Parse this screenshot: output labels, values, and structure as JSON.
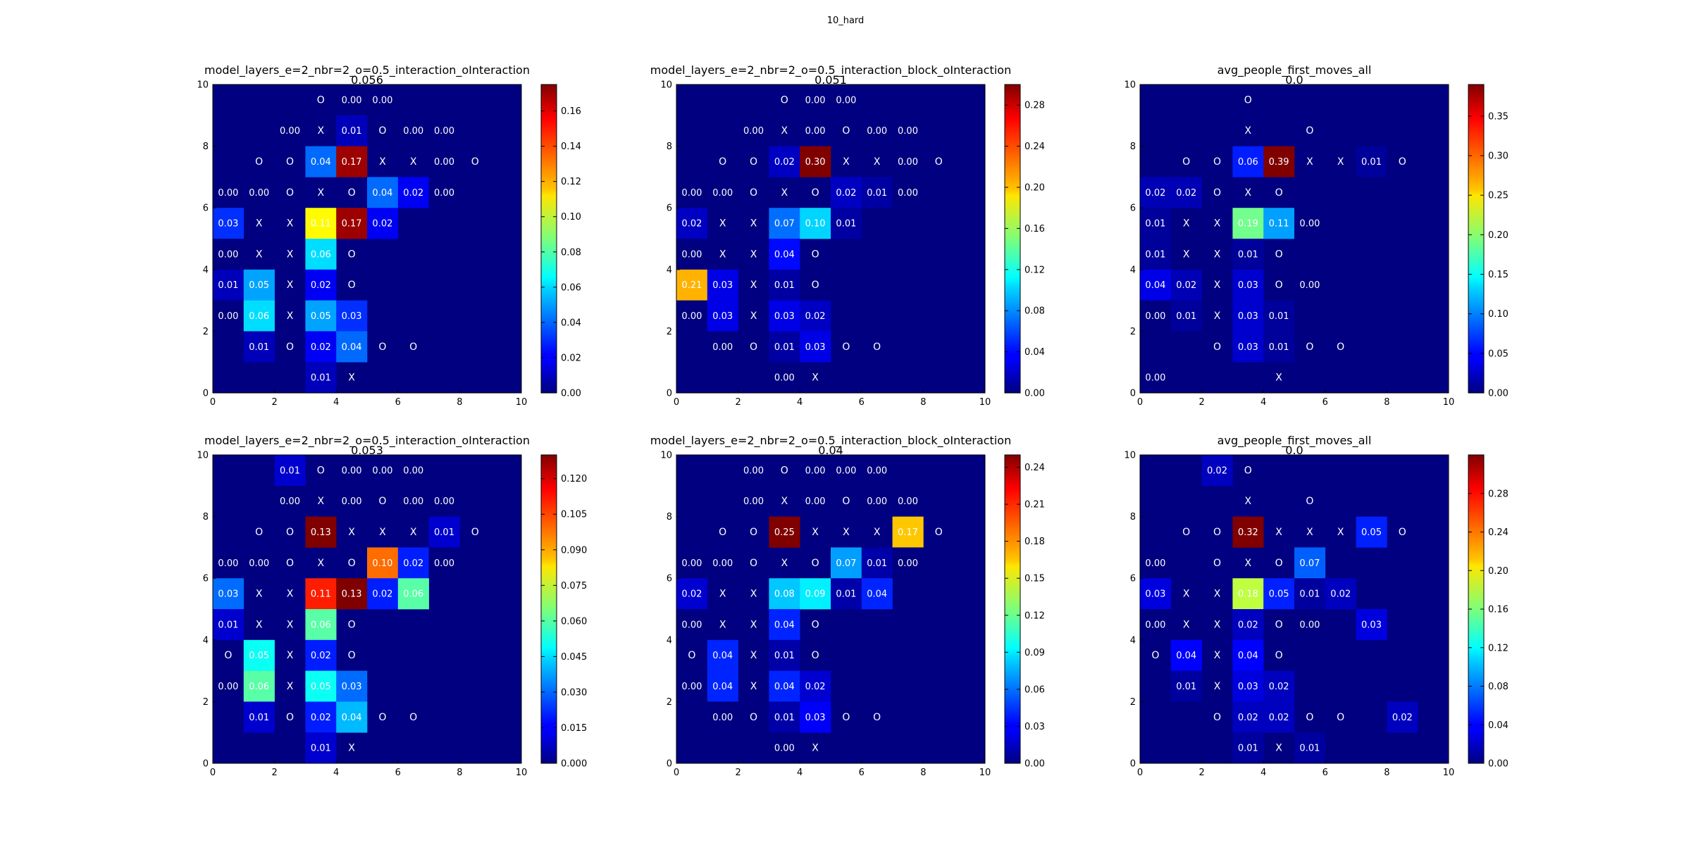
{
  "figure_title": "10_hard",
  "colors": {
    "frame": "#000000",
    "cell_text": "#ffffff"
  },
  "chart_data": [
    {
      "type": "heatmap",
      "title": "model_layers_e=2_nbr=2_o=0.5_interaction_oInteraction",
      "subtitle": "0.056",
      "xlim": [
        0,
        10
      ],
      "ylim": [
        0,
        10
      ],
      "x_ticks": [
        "0",
        "2",
        "4",
        "6",
        "8",
        "10"
      ],
      "y_ticks": [
        "0",
        "2",
        "4",
        "6",
        "8",
        "10"
      ],
      "colorbar": {
        "min": 0,
        "max": 0.175,
        "ticks": [
          "0.00",
          "0.02",
          "0.04",
          "0.06",
          "0.08",
          "0.10",
          "0.12",
          "0.14",
          "0.16"
        ]
      },
      "rows": [
        [
          "",
          "",
          "",
          "O",
          "0.00",
          "0.00",
          "",
          "",
          "",
          ""
        ],
        [
          "",
          "",
          "0.00",
          "X",
          "0.01",
          "O",
          "0.00",
          "0.00",
          "",
          ""
        ],
        [
          "",
          "O",
          "O",
          "0.04",
          "0.17",
          "X",
          "X",
          "0.00",
          "O",
          ""
        ],
        [
          "0.00",
          "0.00",
          "O",
          "X",
          "O",
          "0.04",
          "0.02",
          "0.00",
          "",
          ""
        ],
        [
          "0.03",
          "X",
          "X",
          "0.11",
          "0.17",
          "0.02",
          "",
          "",
          "",
          ""
        ],
        [
          "0.00",
          "X",
          "X",
          "0.06",
          "O",
          "",
          "",
          "",
          "",
          ""
        ],
        [
          "0.01",
          "0.05",
          "X",
          "0.02",
          "O",
          "",
          "",
          "",
          "",
          ""
        ],
        [
          "0.00",
          "0.06",
          "X",
          "0.05",
          "0.03",
          "",
          "",
          "",
          "",
          ""
        ],
        [
          "",
          "0.01",
          "O",
          "0.02",
          "0.04",
          "O",
          "O",
          "",
          "",
          ""
        ],
        [
          "",
          "",
          "",
          "0.01",
          "X",
          "",
          "",
          "",
          "",
          ""
        ]
      ]
    },
    {
      "type": "heatmap",
      "title": "model_layers_e=2_nbr=2_o=0.5_interaction_block_oInteraction",
      "subtitle": "0.051",
      "xlim": [
        0,
        10
      ],
      "ylim": [
        0,
        10
      ],
      "x_ticks": [
        "0",
        "2",
        "4",
        "6",
        "8",
        "10"
      ],
      "y_ticks": [
        "0",
        "2",
        "4",
        "6",
        "8",
        "10"
      ],
      "colorbar": {
        "min": 0,
        "max": 0.3,
        "ticks": [
          "0.00",
          "0.04",
          "0.08",
          "0.12",
          "0.16",
          "0.20",
          "0.24",
          "0.28"
        ]
      },
      "rows": [
        [
          "",
          "",
          "",
          "O",
          "0.00",
          "0.00",
          "",
          "",
          "",
          ""
        ],
        [
          "",
          "",
          "0.00",
          "X",
          "0.00",
          "O",
          "0.00",
          "0.00",
          "",
          ""
        ],
        [
          "",
          "O",
          "O",
          "0.02",
          "0.30",
          "X",
          "X",
          "0.00",
          "O",
          ""
        ],
        [
          "0.00",
          "0.00",
          "O",
          "X",
          "O",
          "0.02",
          "0.01",
          "0.00",
          "",
          ""
        ],
        [
          "0.02",
          "X",
          "X",
          "0.07",
          "0.10",
          "0.01",
          "",
          "",
          "",
          ""
        ],
        [
          "0.00",
          "X",
          "X",
          "0.04",
          "O",
          "",
          "",
          "",
          "",
          ""
        ],
        [
          "0.21",
          "0.03",
          "X",
          "0.01",
          "O",
          "",
          "",
          "",
          "",
          ""
        ],
        [
          "0.00",
          "0.03",
          "X",
          "0.03",
          "0.02",
          "",
          "",
          "",
          "",
          ""
        ],
        [
          "",
          "0.00",
          "O",
          "0.01",
          "0.03",
          "O",
          "O",
          "",
          "",
          ""
        ],
        [
          "",
          "",
          "",
          "0.00",
          "X",
          "",
          "",
          "",
          "",
          ""
        ]
      ]
    },
    {
      "type": "heatmap",
      "title": "avg_people_first_moves_all",
      "subtitle": "0.0",
      "xlim": [
        0,
        10
      ],
      "ylim": [
        0,
        10
      ],
      "x_ticks": [
        "0",
        "2",
        "4",
        "6",
        "8",
        "10"
      ],
      "y_ticks": [
        "0",
        "2",
        "4",
        "6",
        "8",
        "10"
      ],
      "colorbar": {
        "min": 0,
        "max": 0.39,
        "ticks": [
          "0.00",
          "0.05",
          "0.10",
          "0.15",
          "0.20",
          "0.25",
          "0.30",
          "0.35"
        ]
      },
      "rows": [
        [
          "",
          "",
          "",
          "O",
          "",
          "",
          "",
          "",
          "",
          ""
        ],
        [
          "",
          "",
          "",
          "X",
          "",
          "O",
          "",
          "",
          "",
          ""
        ],
        [
          "",
          "O",
          "O",
          "0.06",
          "0.39",
          "X",
          "X",
          "0.01",
          "O",
          ""
        ],
        [
          "0.02",
          "0.02",
          "O",
          "X",
          "O",
          "",
          "",
          "",
          "",
          ""
        ],
        [
          "0.01",
          "X",
          "X",
          "0.19",
          "0.11",
          "0.00",
          "",
          "",
          "",
          ""
        ],
        [
          "0.01",
          "X",
          "X",
          "0.01",
          "O",
          "",
          "",
          "",
          "",
          ""
        ],
        [
          "0.04",
          "0.02",
          "X",
          "0.03",
          "O",
          "0.00",
          "",
          "",
          "",
          ""
        ],
        [
          "0.00",
          "0.01",
          "X",
          "0.03",
          "0.01",
          "",
          "",
          "",
          "",
          ""
        ],
        [
          "",
          "",
          "O",
          "0.03",
          "0.01",
          "O",
          "O",
          "",
          "",
          ""
        ],
        [
          "0.00",
          "",
          "",
          "",
          "X",
          "",
          "",
          "",
          "",
          ""
        ]
      ]
    },
    {
      "type": "heatmap",
      "title": "model_layers_e=2_nbr=2_o=0.5_interaction_oInteraction",
      "subtitle": "0.053",
      "xlim": [
        0,
        10
      ],
      "ylim": [
        0,
        10
      ],
      "x_ticks": [
        "0",
        "2",
        "4",
        "6",
        "8",
        "10"
      ],
      "y_ticks": [
        "0",
        "2",
        "4",
        "6",
        "8",
        "10"
      ],
      "colorbar": {
        "min": 0,
        "max": 0.13,
        "ticks": [
          "0.000",
          "0.015",
          "0.030",
          "0.045",
          "0.060",
          "0.075",
          "0.090",
          "0.105",
          "0.120"
        ]
      },
      "rows": [
        [
          "",
          "",
          "0.01",
          "O",
          "0.00",
          "0.00",
          "0.00",
          "",
          "",
          ""
        ],
        [
          "",
          "",
          "0.00",
          "X",
          "0.00",
          "O",
          "0.00",
          "0.00",
          "",
          ""
        ],
        [
          "",
          "O",
          "O",
          "0.13",
          "X",
          "X",
          "X",
          "0.01",
          "O",
          ""
        ],
        [
          "0.00",
          "0.00",
          "O",
          "X",
          "O",
          "0.10",
          "0.02",
          "0.00",
          "",
          ""
        ],
        [
          "0.03",
          "X",
          "X",
          "0.11",
          "0.13",
          "0.02",
          "0.06",
          "",
          "",
          ""
        ],
        [
          "0.01",
          "X",
          "X",
          "0.06",
          "O",
          "",
          "",
          "",
          "",
          ""
        ],
        [
          "O",
          "0.05",
          "X",
          "0.02",
          "O",
          "",
          "",
          "",
          "",
          ""
        ],
        [
          "0.00",
          "0.06",
          "X",
          "0.05",
          "0.03",
          "",
          "",
          "",
          "",
          ""
        ],
        [
          "",
          "0.01",
          "O",
          "0.02",
          "0.04",
          "O",
          "O",
          "",
          "",
          ""
        ],
        [
          "",
          "",
          "",
          "0.01",
          "X",
          "",
          "",
          "",
          "",
          ""
        ]
      ]
    },
    {
      "type": "heatmap",
      "title": "model_layers_e=2_nbr=2_o=0.5_interaction_block_oInteraction",
      "subtitle": "0.04",
      "xlim": [
        0,
        10
      ],
      "ylim": [
        0,
        10
      ],
      "x_ticks": [
        "0",
        "2",
        "4",
        "6",
        "8",
        "10"
      ],
      "y_ticks": [
        "0",
        "2",
        "4",
        "6",
        "8",
        "10"
      ],
      "colorbar": {
        "min": 0,
        "max": 0.25,
        "ticks": [
          "0.00",
          "0.03",
          "0.06",
          "0.09",
          "0.12",
          "0.15",
          "0.18",
          "0.21",
          "0.24"
        ]
      },
      "rows": [
        [
          "",
          "",
          "0.00",
          "O",
          "0.00",
          "0.00",
          "0.00",
          "",
          "",
          ""
        ],
        [
          "",
          "",
          "0.00",
          "X",
          "0.00",
          "O",
          "0.00",
          "0.00",
          "",
          ""
        ],
        [
          "",
          "O",
          "O",
          "0.25",
          "X",
          "X",
          "X",
          "0.17",
          "O",
          ""
        ],
        [
          "0.00",
          "0.00",
          "O",
          "X",
          "O",
          "0.07",
          "0.01",
          "0.00",
          "",
          ""
        ],
        [
          "0.02",
          "X",
          "X",
          "0.08",
          "0.09",
          "0.01",
          "0.04",
          "",
          "",
          ""
        ],
        [
          "0.00",
          "X",
          "X",
          "0.04",
          "O",
          "",
          "",
          "",
          "",
          ""
        ],
        [
          "O",
          "0.04",
          "X",
          "0.01",
          "O",
          "",
          "",
          "",
          "",
          ""
        ],
        [
          "0.00",
          "0.04",
          "X",
          "0.04",
          "0.02",
          "",
          "",
          "",
          "",
          ""
        ],
        [
          "",
          "0.00",
          "O",
          "0.01",
          "0.03",
          "O",
          "O",
          "",
          "",
          ""
        ],
        [
          "",
          "",
          "",
          "0.00",
          "X",
          "",
          "",
          "",
          "",
          ""
        ]
      ]
    },
    {
      "type": "heatmap",
      "title": "avg_people_first_moves_all",
      "subtitle": "0.0",
      "xlim": [
        0,
        10
      ],
      "ylim": [
        0,
        10
      ],
      "x_ticks": [
        "0",
        "2",
        "4",
        "6",
        "8",
        "10"
      ],
      "y_ticks": [
        "0",
        "2",
        "4",
        "6",
        "8",
        "10"
      ],
      "colorbar": {
        "min": 0,
        "max": 0.32,
        "ticks": [
          "0.00",
          "0.04",
          "0.08",
          "0.12",
          "0.16",
          "0.20",
          "0.24",
          "0.28"
        ]
      },
      "rows": [
        [
          "",
          "",
          "0.02",
          "O",
          "",
          "",
          "",
          "",
          "",
          ""
        ],
        [
          "",
          "",
          "",
          "X",
          "",
          "O",
          "",
          "",
          "",
          ""
        ],
        [
          "",
          "O",
          "O",
          "0.32",
          "X",
          "X",
          "X",
          "0.05",
          "O",
          ""
        ],
        [
          "0.00",
          "",
          "O",
          "X",
          "O",
          "0.07",
          "",
          "",
          "",
          ""
        ],
        [
          "0.03",
          "X",
          "X",
          "0.18",
          "0.05",
          "0.01",
          "0.02",
          "",
          "",
          ""
        ],
        [
          "0.00",
          "X",
          "X",
          "0.02",
          "O",
          "0.00",
          "",
          "0.03",
          "",
          ""
        ],
        [
          "O",
          "0.04",
          "X",
          "0.04",
          "O",
          "",
          "",
          "",
          "",
          ""
        ],
        [
          "",
          "0.01",
          "X",
          "0.03",
          "0.02",
          "",
          "",
          "",
          "",
          ""
        ],
        [
          "",
          "",
          "O",
          "0.02",
          "0.02",
          "O",
          "O",
          "",
          "0.02",
          ""
        ],
        [
          "",
          "",
          "",
          "0.01",
          "X",
          "0.01",
          "",
          "",
          "",
          ""
        ]
      ]
    }
  ]
}
